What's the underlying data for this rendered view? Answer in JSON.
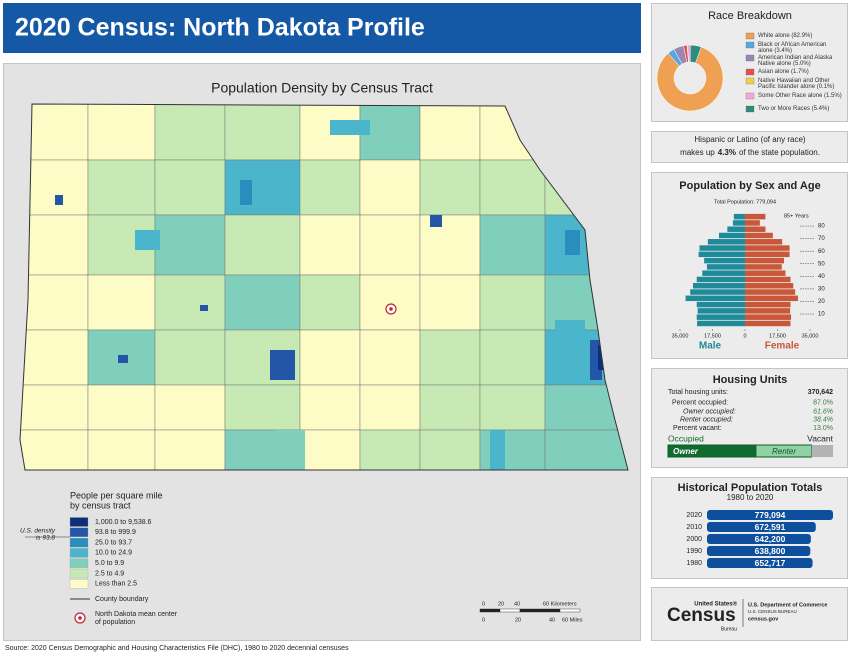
{
  "header": {
    "title": "2020 Census: North Dakota Profile"
  },
  "map": {
    "title": "Population Density by Census Tract",
    "legend_title": [
      "People per square mile",
      "by census tract"
    ],
    "us_density_note": [
      "U.S. density",
      "is 93.8"
    ],
    "legend": [
      {
        "label": "1,000.0 to 9,538.6",
        "color": "#0b2f7a"
      },
      {
        "label": "93.8 to 999.9",
        "color": "#2356a6"
      },
      {
        "label": "25.0 to 93.7",
        "color": "#2b8cbe"
      },
      {
        "label": "10.0 to 24.9",
        "color": "#4bb5cc"
      },
      {
        "label": "5.0 to 9.9",
        "color": "#80cfbd"
      },
      {
        "label": "2.5 to 4.9",
        "color": "#c7e9b4"
      },
      {
        "label": "Less than 2.5",
        "color": "#fdfbc6"
      }
    ],
    "county_boundary": "County boundary",
    "mean_center": [
      "North Dakota mean center",
      "of population"
    ],
    "scale_km": [
      "0",
      "20",
      "40",
      "60 Kilometers"
    ],
    "scale_mi": [
      "0",
      "20",
      "40",
      "60 Miles"
    ]
  },
  "chart_data": [
    {
      "type": "pie",
      "title": "Race Breakdown",
      "categories": [
        "White alone (82.9%)",
        "Black or African American alone (3.4%)",
        "American Indian and Alaska Native alone (5.0%)",
        "Asian alone (1.7%)",
        "Native Hawaiian and Other Pacific Islander alone (0.1%)",
        "Some Other Race alone (1.5%)",
        "Two or More Races (5.4%)"
      ],
      "values": [
        82.9,
        3.4,
        5.0,
        1.7,
        0.1,
        1.5,
        5.4
      ],
      "colors": [
        "#f0a052",
        "#58a6dc",
        "#9a86b3",
        "#e0504f",
        "#f3cf45",
        "#f4a6d9",
        "#2e8c7c"
      ]
    },
    {
      "type": "pyramid",
      "title": "Population by Sex and Age",
      "subtitle": "Total Population: 779,094",
      "annotation": "85+ Years",
      "y": [
        0,
        5,
        10,
        15,
        20,
        25,
        30,
        35,
        40,
        45,
        50,
        55,
        60,
        65,
        70,
        75,
        80,
        85
      ],
      "ylim": [
        0,
        90
      ],
      "yticks": [
        10,
        20,
        30,
        40,
        50,
        60,
        70,
        80
      ],
      "xlim": [
        -35000,
        35000
      ],
      "xticks": [
        {
          "value": -35000,
          "label": "35,000"
        },
        {
          "value": -17500,
          "label": "17,500"
        },
        0,
        {
          "value": 17500,
          "label": "17,500"
        },
        {
          "value": 35000,
          "label": "35,000"
        }
      ],
      "series": [
        {
          "name": "Male",
          "color": "#1f8a99",
          "values": [
            25800,
            26000,
            25500,
            26000,
            32000,
            29500,
            28000,
            26000,
            23000,
            20500,
            22000,
            25000,
            24500,
            20000,
            14000,
            9500,
            6500,
            6000
          ]
        },
        {
          "name": "Female",
          "color": "#c9573a",
          "values": [
            24500,
            24800,
            24300,
            24500,
            28500,
            27000,
            26000,
            24500,
            21800,
            19800,
            21000,
            24000,
            24000,
            20000,
            15000,
            11000,
            8000,
            11000
          ]
        }
      ]
    },
    {
      "type": "hbar",
      "title": "Historical Population Totals",
      "subtitle": "1980 to 2020",
      "categories": [
        "2020",
        "2010",
        "2000",
        "1990",
        "1980"
      ],
      "values": [
        779094,
        672591,
        642200,
        638800,
        652717
      ],
      "value_labels": [
        "779,094",
        "672,591",
        "642,200",
        "638,800",
        "652,717"
      ],
      "color": "#0d4f9c"
    }
  ],
  "hispanic": {
    "line1": "Hispanic or Latino (of any race)",
    "pre": "makes up",
    "highlight": "4.3%",
    "post": "of the state population."
  },
  "housing": {
    "title": "Housing Units",
    "rows": [
      {
        "label": "Total housing units:",
        "value": "370,642"
      },
      {
        "label": "Percent occupied:",
        "value": "87.0%"
      },
      {
        "label": "Owner occupied:",
        "value": "61.6%"
      },
      {
        "label": "Renter occupied:",
        "value": "38.4%"
      },
      {
        "label": "Percent vacant:",
        "value": "13.0%"
      }
    ],
    "bar": {
      "occupied_label": "Occupied",
      "vacant_label": "Vacant",
      "owner_label": "Owner",
      "renter_label": "Renter",
      "occupied": 87.0,
      "owner": 61.6,
      "renter": 38.4,
      "vacant": 13.0
    }
  },
  "logo": {
    "line1": "United States®",
    "line2": "Census",
    "line3": "Bureau",
    "dept": "U.S. Department of Commerce",
    "bureau": "U.S. CENSUS BUREAU",
    "site": "census.gov"
  },
  "source": "Source: 2020 Census Demographic and Housing Characteristics File (DHC), 1980 to 2020 decennial censuses"
}
